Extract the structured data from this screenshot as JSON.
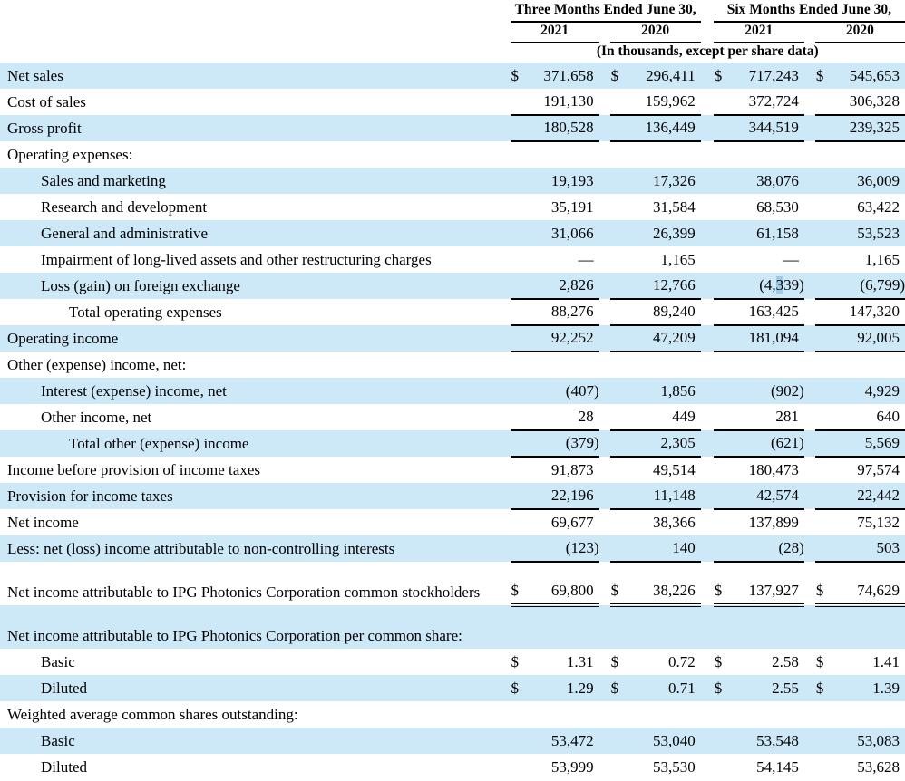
{
  "colors": {
    "shaded_row": "#cde9f8",
    "selection_highlight": "#a3c9e4",
    "rule": "#000000",
    "text": "#000000"
  },
  "header": {
    "groups": [
      {
        "label": "Three Months Ended June 30,"
      },
      {
        "label": "Six Months Ended June 30,"
      }
    ],
    "years": [
      "2021",
      "2020",
      "2021",
      "2020"
    ],
    "units_note": "(In thousands, except per share data)"
  },
  "table": {
    "currency_symbol": "$",
    "rows": [
      {
        "label": "Net sales",
        "indent": 0,
        "shaded": true,
        "dollar": true,
        "underline": "none",
        "values": [
          "371,658",
          "296,411",
          "717,243",
          "545,653"
        ]
      },
      {
        "label": "Cost of sales",
        "indent": 0,
        "shaded": false,
        "dollar": false,
        "underline": "single",
        "values": [
          "191,130",
          "159,962",
          "372,724",
          "306,328"
        ]
      },
      {
        "label": "Gross profit",
        "indent": 0,
        "shaded": true,
        "dollar": false,
        "underline": "single",
        "values": [
          "180,528",
          "136,449",
          "344,519",
          "239,325"
        ]
      },
      {
        "label": "Operating expenses:",
        "indent": 0,
        "shaded": false,
        "dollar": false,
        "underline": "none",
        "values": null
      },
      {
        "label": "Sales and marketing",
        "indent": 1,
        "shaded": true,
        "dollar": false,
        "underline": "none",
        "values": [
          "19,193",
          "17,326",
          "38,076",
          "36,009"
        ]
      },
      {
        "label": "Research and development",
        "indent": 1,
        "shaded": false,
        "dollar": false,
        "underline": "none",
        "values": [
          "35,191",
          "31,584",
          "68,530",
          "63,422"
        ]
      },
      {
        "label": "General and administrative",
        "indent": 1,
        "shaded": true,
        "dollar": false,
        "underline": "none",
        "values": [
          "31,066",
          "26,399",
          "61,158",
          "53,523"
        ]
      },
      {
        "label": "Impairment of long-lived assets and other restructuring charges",
        "indent": 1,
        "shaded": false,
        "dollar": false,
        "underline": "none",
        "values": [
          "—",
          "1,165",
          "—",
          "1,165"
        ]
      },
      {
        "label": "Loss (gain) on foreign exchange",
        "indent": 1,
        "shaded": true,
        "dollar": false,
        "underline": "single",
        "values": [
          "2,826",
          "12,766",
          "(4,339)",
          "(6,799)"
        ]
      },
      {
        "label": "Total operating expenses",
        "indent": 2,
        "shaded": false,
        "dollar": false,
        "underline": "single",
        "values": [
          "88,276",
          "89,240",
          "163,425",
          "147,320"
        ]
      },
      {
        "label": "Operating income",
        "indent": 0,
        "shaded": true,
        "dollar": false,
        "underline": "single",
        "values": [
          "92,252",
          "47,209",
          "181,094",
          "92,005"
        ]
      },
      {
        "label": "Other (expense) income, net:",
        "indent": 0,
        "shaded": false,
        "dollar": false,
        "underline": "none",
        "values": null
      },
      {
        "label": "Interest (expense) income, net",
        "indent": 1,
        "shaded": true,
        "dollar": false,
        "underline": "none",
        "values": [
          "(407)",
          "1,856",
          "(902)",
          "4,929"
        ]
      },
      {
        "label": "Other income, net",
        "indent": 1,
        "shaded": false,
        "dollar": false,
        "underline": "single",
        "values": [
          "28",
          "449",
          "281",
          "640"
        ]
      },
      {
        "label": "Total other (expense) income",
        "indent": 2,
        "shaded": true,
        "dollar": false,
        "underline": "single",
        "values": [
          "(379)",
          "2,305",
          "(621)",
          "5,569"
        ]
      },
      {
        "label": "Income before provision of income taxes",
        "indent": 0,
        "shaded": false,
        "dollar": false,
        "underline": "none",
        "values": [
          "91,873",
          "49,514",
          "180,473",
          "97,574"
        ]
      },
      {
        "label": "Provision for income taxes",
        "indent": 0,
        "shaded": true,
        "dollar": false,
        "underline": "single",
        "values": [
          "22,196",
          "11,148",
          "42,574",
          "22,442"
        ]
      },
      {
        "label": "Net income",
        "indent": 0,
        "shaded": false,
        "dollar": false,
        "underline": "none",
        "values": [
          "69,677",
          "38,366",
          "137,899",
          "75,132"
        ]
      },
      {
        "label": "Less: net (loss) income attributable to non-controlling interests",
        "indent": 0,
        "shaded": true,
        "dollar": false,
        "underline": "single",
        "values": [
          "(123)",
          "140",
          "(28)",
          "503"
        ]
      },
      {
        "label": "Net income attributable to IPG Photonics Corporation common stockholders",
        "indent": 0,
        "shaded": false,
        "dollar": true,
        "underline": "double",
        "tall": true,
        "values": [
          "69,800",
          "38,226",
          "137,927",
          "74,629"
        ]
      },
      {
        "label": "Net income attributable to IPG Photonics Corporation per common share:",
        "indent": 0,
        "shaded": true,
        "dollar": false,
        "underline": "none",
        "tall": true,
        "values": null
      },
      {
        "label": "Basic",
        "indent": 1,
        "shaded": false,
        "dollar": true,
        "underline": "none",
        "values": [
          "1.31",
          "0.72",
          "2.58",
          "1.41"
        ]
      },
      {
        "label": "Diluted",
        "indent": 1,
        "shaded": true,
        "dollar": true,
        "underline": "none",
        "values": [
          "1.29",
          "0.71",
          "2.55",
          "1.39"
        ]
      },
      {
        "label": "Weighted average common shares outstanding:",
        "indent": 0,
        "shaded": false,
        "dollar": false,
        "underline": "none",
        "values": null
      },
      {
        "label": "Basic",
        "indent": 1,
        "shaded": true,
        "dollar": false,
        "underline": "none",
        "values": [
          "53,472",
          "53,040",
          "53,548",
          "53,083"
        ]
      },
      {
        "label": "Diluted",
        "indent": 1,
        "shaded": false,
        "dollar": false,
        "underline": "none",
        "values": [
          "53,999",
          "53,530",
          "54,145",
          "53,628"
        ]
      }
    ]
  },
  "selection": {
    "row": 8,
    "col": 2,
    "char_index": 3,
    "selected_char": "3"
  }
}
